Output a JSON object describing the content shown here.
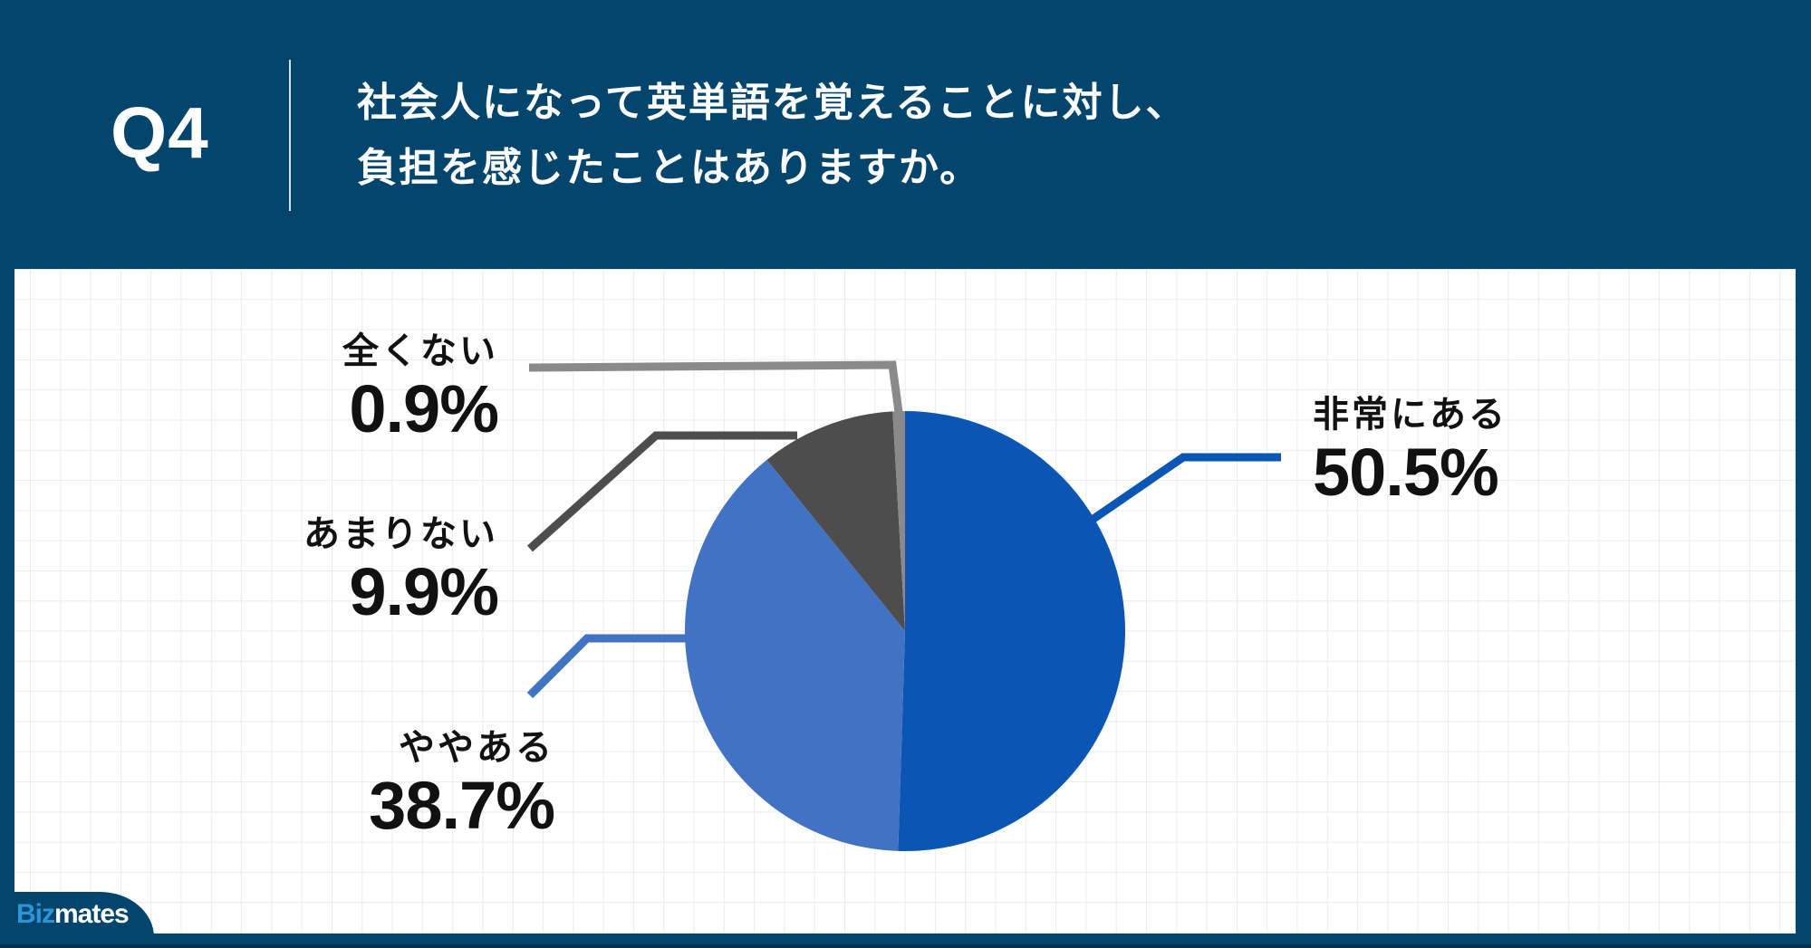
{
  "header": {
    "question_number": "Q4",
    "question_lines": [
      "社会人になって英単語を覚えることに対し、",
      "負担を感じたことはありますか。"
    ]
  },
  "labels": {
    "hijou": {
      "name": "非常にある",
      "pct": "50.5%"
    },
    "yaya": {
      "name": "ややある",
      "pct": "38.7%"
    },
    "amari": {
      "name": "あまりない",
      "pct": "9.9%"
    },
    "mattaku": {
      "name": "全くない",
      "pct": "0.9%"
    }
  },
  "colors": {
    "background": "#04456e",
    "hijou": "#0b55b5",
    "yaya": "#4272c4",
    "amari": "#4d4d4d",
    "mattaku": "#8a8a8a"
  },
  "logo": {
    "part1": "Biz",
    "part2": "mates"
  },
  "chart_data": {
    "type": "pie",
    "title": "社会人になって英単語を覚えることに対し、負担を感じたことはありますか。",
    "categories": [
      "非常にある",
      "ややある",
      "あまりない",
      "全くない"
    ],
    "values": [
      50.5,
      38.7,
      9.9,
      0.9
    ],
    "colors": [
      "#0b55b5",
      "#4272c4",
      "#4d4d4d",
      "#8a8a8a"
    ],
    "start_angle": "12 o'clock, clockwise",
    "legend": "none (leader-line data labels)",
    "grid": false
  }
}
